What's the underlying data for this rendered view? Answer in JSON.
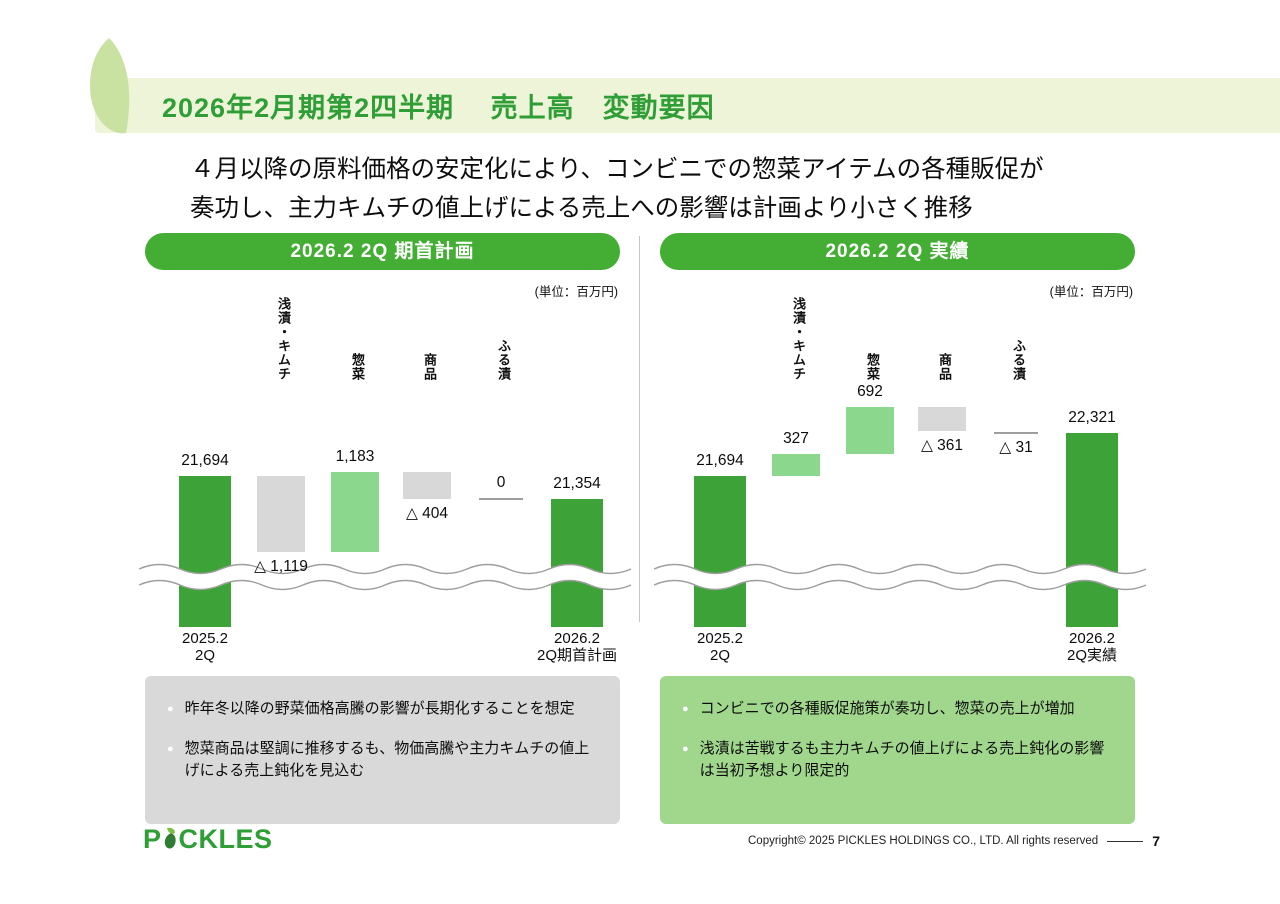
{
  "page": {
    "title": "2026年2月期第2四半期　 売上高　変動要因",
    "subtitle_line1": "４月以降の原料価格の安定化により、コンビニでの惣菜アイテムの各種販促が",
    "subtitle_line2": "奏功し、主力キムチの値上げによる売上への影響は計画より小さく推移",
    "logo": {
      "pre": "P",
      "post": "CKLES"
    },
    "copyright": "Copyright© 2025 PICKLES HOLDINGS CO., LTD. All rights reserved",
    "page_number": "7"
  },
  "colors": {
    "title_green": "#2F9E36",
    "header_green": "#44AE34",
    "total_bar_green": "#3DA339",
    "increase_bar_green": "#8CD78E",
    "decrease_bar_gray": "#D8D8D8",
    "band_cream": "#EDF4D8",
    "comment_box_gray": "#D9D9D9",
    "comment_box_green": "#A0D78C"
  },
  "chart_data": [
    {
      "type": "waterfall",
      "title": "2026.2  2Q  期首計画",
      "unit_label": "(単位：百万円)",
      "unit": "百万円",
      "axis_break": true,
      "categories": [
        "浅漬・キムチ",
        "惣菜",
        "商品",
        "ふる漬"
      ],
      "steps": [
        {
          "kind": "total",
          "label": "21,694",
          "value": 21694,
          "axis_label": [
            "2025.2",
            "2Q"
          ]
        },
        {
          "kind": "delta",
          "category": "浅漬・キムチ",
          "label": "△ 1,119",
          "value": -1119
        },
        {
          "kind": "delta",
          "category": "惣菜",
          "label": "1,183",
          "value": 1183
        },
        {
          "kind": "delta",
          "category": "商品",
          "label": "△ 404",
          "value": -404
        },
        {
          "kind": "delta",
          "category": "ふる漬",
          "label": "0",
          "value": 0
        },
        {
          "kind": "total",
          "label": "21,354",
          "value": 21354,
          "axis_label": [
            "2026.2",
            "2Q期首計画"
          ]
        }
      ]
    },
    {
      "type": "waterfall",
      "title": "2026.2  2Q  実績",
      "unit_label": "(単位：百万円)",
      "unit": "百万円",
      "axis_break": true,
      "categories": [
        "浅漬・キムチ",
        "惣菜",
        "商品",
        "ふる漬"
      ],
      "steps": [
        {
          "kind": "total",
          "label": "21,694",
          "value": 21694,
          "axis_label": [
            "2025.2",
            "2Q"
          ]
        },
        {
          "kind": "delta",
          "category": "浅漬・キムチ",
          "label": "327",
          "value": 327
        },
        {
          "kind": "delta",
          "category": "惣菜",
          "label": "692",
          "value": 692
        },
        {
          "kind": "delta",
          "category": "商品",
          "label": "△ 361",
          "value": -361
        },
        {
          "kind": "delta",
          "category": "ふる漬",
          "label": "△ 31",
          "value": -31
        },
        {
          "kind": "total",
          "label": "22,321",
          "value": 22321,
          "axis_label": [
            "2026.2",
            "2Q実績"
          ]
        }
      ]
    }
  ],
  "comments": {
    "plan": [
      "昨年冬以降の野菜価格高騰の影響が長期化することを想定",
      "惣菜商品は堅調に推移するも、物価高騰や主力キムチの値上げによる売上鈍化を見込む"
    ],
    "actual": [
      "コンビニでの各種販促施策が奏功し、惣菜の売上が増加",
      "浅漬は苦戦するも主力キムチの値上げによる売上鈍化の影響は当初予想より限定的"
    ]
  }
}
